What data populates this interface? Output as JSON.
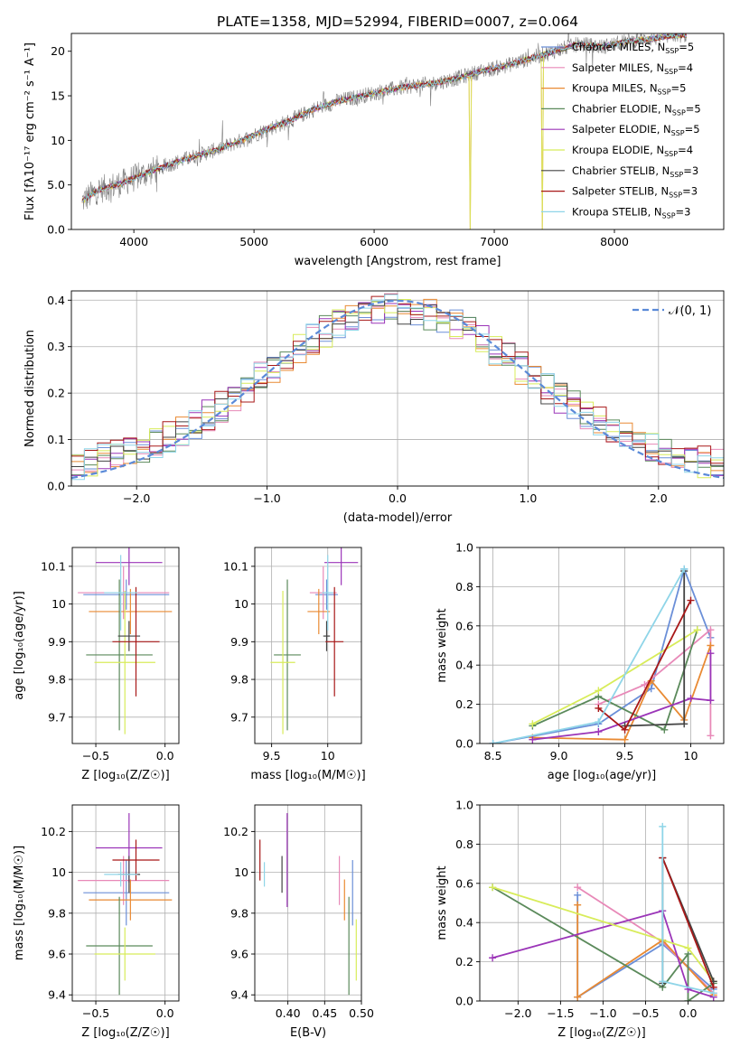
{
  "figure": {
    "title": "PLATE=1358, MJD=52994, FIBERID=0007, z=0.064"
  },
  "chart_data": [
    {
      "id": "spectrum",
      "type": "line",
      "xlabel": "wavelength [Angstrom, rest frame]",
      "ylabel": "Flux [fλ10⁻¹⁷ erg cm⁻² s⁻¹ A⁻¹]",
      "xlim": [
        3480,
        8910
      ],
      "ylim": [
        0,
        22
      ],
      "xticks": [
        4000,
        5000,
        6000,
        7000,
        8000
      ],
      "yticks": [
        0,
        5,
        10,
        15,
        20
      ],
      "grid": false,
      "legend": "upper-right",
      "observed_color": "#808080",
      "observed_trend": [
        [
          3570,
          3.2
        ],
        [
          3700,
          4.4
        ],
        [
          3900,
          5.2
        ],
        [
          4100,
          6.3
        ],
        [
          4300,
          7.3
        ],
        [
          4500,
          8.2
        ],
        [
          4700,
          9.0
        ],
        [
          4900,
          10.0
        ],
        [
          5100,
          11.2
        ],
        [
          5300,
          12.2
        ],
        [
          5500,
          13.5
        ],
        [
          5700,
          14.4
        ],
        [
          5900,
          15.0
        ],
        [
          6100,
          15.6
        ],
        [
          6300,
          16.1
        ],
        [
          6500,
          16.4
        ],
        [
          6700,
          17.0
        ],
        [
          6900,
          17.8
        ],
        [
          7100,
          18.4
        ],
        [
          7300,
          19.2
        ],
        [
          7500,
          20.0
        ],
        [
          7700,
          20.8
        ],
        [
          7900,
          20.5
        ],
        [
          8100,
          21.1
        ],
        [
          8300,
          21.4
        ],
        [
          8500,
          21.8
        ]
      ],
      "absorption_dips": [
        [
          6800,
          0.0
        ],
        [
          7400,
          0.0
        ]
      ],
      "series": [
        {
          "name": "Chabrier MILES, N",
          "n": "=5",
          "color": "#6b8fd8"
        },
        {
          "name": "Salpeter MILES, N",
          "n": "=4",
          "color": "#e889b8"
        },
        {
          "name": "Kroupa MILES, N",
          "n": "=5",
          "color": "#e98a33"
        },
        {
          "name": "Chabrier ELODIE, N",
          "n": "=5",
          "color": "#5b8a5b"
        },
        {
          "name": "Salpeter ELODIE, N",
          "n": "=5",
          "color": "#9b35b8"
        },
        {
          "name": "Kroupa ELODIE, N",
          "n": "=4",
          "color": "#d8ec5a"
        },
        {
          "name": "Chabrier STELIB, N",
          "n": "=3",
          "color": "#444444"
        },
        {
          "name": "Salpeter STELIB, N",
          "n": "=3",
          "color": "#a81818"
        },
        {
          "name": "Kroupa STELIB, N",
          "n": "=3",
          "color": "#8fd5e8"
        }
      ],
      "legend_subscript": "SSP"
    },
    {
      "id": "residuals",
      "type": "line",
      "xlabel": "(data-model)/error",
      "ylabel": "Normed distribution",
      "xlim": [
        -2.5,
        2.5
      ],
      "ylim": [
        0,
        0.42
      ],
      "xticks": [
        -2,
        -1,
        0,
        1,
        2
      ],
      "yticks": [
        0.0,
        0.1,
        0.2,
        0.3,
        0.4
      ],
      "grid": true,
      "legend": "upper-right",
      "gaussian": {
        "name": "𝒩(0, 1)",
        "mean": 0,
        "sigma": 1,
        "color": "#5b8ad8"
      },
      "bin_width": 0.1,
      "hist_colors": [
        "#6b8fd8",
        "#e889b8",
        "#e98a33",
        "#5b8a5b",
        "#9b35b8",
        "#d8ec5a",
        "#444444",
        "#a81818",
        "#8fd5e8"
      ]
    },
    {
      "id": "z-age",
      "type": "scatter",
      "xlabel": "Z [log₁₀(Z/Z☉)]",
      "ylabel": "age  [log₁₀(age/yr)]",
      "xlim": [
        -0.67,
        0.1
      ],
      "ylim": [
        9.63,
        10.15
      ],
      "xticks": [
        -0.5,
        0.0
      ],
      "yticks": [
        9.7,
        9.8,
        9.9,
        10.0,
        10.1
      ],
      "grid": true,
      "points": [
        {
          "x": -0.28,
          "y": 10.025,
          "xerr": 0.31,
          "yerr": 0.04,
          "color": "#6b8fd8"
        },
        {
          "x": -0.3,
          "y": 10.03,
          "xerr": 0.33,
          "yerr": 0.07,
          "color": "#e889b8"
        },
        {
          "x": -0.25,
          "y": 9.98,
          "xerr": 0.3,
          "yerr": 0.06,
          "color": "#e98a33"
        },
        {
          "x": -0.33,
          "y": 9.865,
          "xerr": 0.24,
          "yerr": 0.2,
          "color": "#5b8a5b"
        },
        {
          "x": -0.26,
          "y": 10.11,
          "xerr": 0.24,
          "yerr": 0.06,
          "color": "#9b35b8"
        },
        {
          "x": -0.29,
          "y": 9.845,
          "xerr": 0.22,
          "yerr": 0.19,
          "color": "#d8ec5a"
        },
        {
          "x": -0.26,
          "y": 9.915,
          "xerr": 0.08,
          "yerr": 0.04,
          "color": "#444444"
        },
        {
          "x": -0.21,
          "y": 9.9,
          "xerr": 0.17,
          "yerr": 0.145,
          "color": "#a81818"
        },
        {
          "x": -0.32,
          "y": 10.03,
          "xerr": 0.12,
          "yerr": 0.1,
          "color": "#8fd5e8"
        }
      ]
    },
    {
      "id": "mass-age",
      "type": "scatter",
      "xlabel": "mass [log₁₀(M/M☉)]",
      "ylabel": "",
      "xlim": [
        9.35,
        10.3
      ],
      "ylim": [
        9.63,
        10.15
      ],
      "xticks": [
        9.5,
        10.0
      ],
      "yticks": [
        9.7,
        9.8,
        9.9,
        10.0,
        10.1
      ],
      "grid": true,
      "points": [
        {
          "x": 9.99,
          "y": 10.025,
          "xerr": 0.1,
          "yerr": 0.04,
          "color": "#6b8fd8"
        },
        {
          "x": 9.96,
          "y": 10.03,
          "xerr": 0.12,
          "yerr": 0.07,
          "color": "#e889b8"
        },
        {
          "x": 9.92,
          "y": 9.98,
          "xerr": 0.1,
          "yerr": 0.06,
          "color": "#e98a33"
        },
        {
          "x": 9.64,
          "y": 9.865,
          "xerr": 0.12,
          "yerr": 0.2,
          "color": "#5b8a5b"
        },
        {
          "x": 10.12,
          "y": 10.11,
          "xerr": 0.15,
          "yerr": 0.06,
          "color": "#9b35b8"
        },
        {
          "x": 9.6,
          "y": 9.845,
          "xerr": 0.11,
          "yerr": 0.19,
          "color": "#d8ec5a"
        },
        {
          "x": 9.99,
          "y": 9.915,
          "xerr": 0.03,
          "yerr": 0.04,
          "color": "#444444"
        },
        {
          "x": 10.06,
          "y": 9.9,
          "xerr": 0.08,
          "yerr": 0.145,
          "color": "#a81818"
        },
        {
          "x": 10.0,
          "y": 10.03,
          "xerr": 0.05,
          "yerr": 0.1,
          "color": "#8fd5e8"
        }
      ]
    },
    {
      "id": "age-weight",
      "type": "line",
      "xlabel": "age  [log₁₀(age/yr)]",
      "ylabel": "mass weight",
      "xlim": [
        8.4,
        10.25
      ],
      "ylim": [
        0,
        1.0
      ],
      "xticks": [
        8.5,
        9.0,
        9.5,
        10.0
      ],
      "yticks": [
        0.0,
        0.2,
        0.4,
        0.6,
        0.8,
        1.0
      ],
      "grid": true,
      "series": [
        {
          "color": "#6b8fd8",
          "points": [
            [
              8.5,
              0.0
            ],
            [
              9.3,
              0.1
            ],
            [
              9.7,
              0.28
            ],
            [
              9.95,
              0.89
            ],
            [
              10.15,
              0.54
            ]
          ]
        },
        {
          "color": "#e889b8",
          "points": [
            [
              9.3,
              0.2
            ],
            [
              9.65,
              0.3
            ],
            [
              10.15,
              0.58
            ],
            [
              10.15,
              0.04
            ]
          ]
        },
        {
          "color": "#e98a33",
          "points": [
            [
              8.8,
              0.03
            ],
            [
              9.5,
              0.02
            ],
            [
              9.7,
              0.32
            ],
            [
              9.95,
              0.12
            ],
            [
              10.15,
              0.5
            ]
          ]
        },
        {
          "color": "#5b8a5b",
          "points": [
            [
              8.8,
              0.09
            ],
            [
              9.3,
              0.24
            ],
            [
              9.8,
              0.07
            ],
            [
              10.05,
              0.58
            ]
          ]
        },
        {
          "color": "#9b35b8",
          "points": [
            [
              8.8,
              0.02
            ],
            [
              9.3,
              0.06
            ],
            [
              10.0,
              0.23
            ],
            [
              10.15,
              0.22
            ],
            [
              10.15,
              0.46
            ]
          ]
        },
        {
          "color": "#d8ec5a",
          "points": [
            [
              8.8,
              0.1
            ],
            [
              9.3,
              0.27
            ],
            [
              10.05,
              0.58
            ]
          ]
        },
        {
          "color": "#444444",
          "points": [
            [
              9.5,
              0.09
            ],
            [
              9.95,
              0.1
            ],
            [
              9.95,
              0.88
            ]
          ]
        },
        {
          "color": "#a81818",
          "points": [
            [
              9.3,
              0.18
            ],
            [
              9.5,
              0.07
            ],
            [
              10.0,
              0.73
            ]
          ]
        },
        {
          "color": "#8fd5e8",
          "points": [
            [
              8.5,
              0.0
            ],
            [
              9.3,
              0.11
            ],
            [
              9.95,
              0.89
            ]
          ]
        }
      ]
    },
    {
      "id": "z-mass",
      "type": "scatter",
      "xlabel": "Z [log₁₀(Z/Z☉)]",
      "ylabel": "mass [log₁₀(M/M☉)]",
      "xlim": [
        -0.67,
        0.1
      ],
      "ylim": [
        9.37,
        10.33
      ],
      "xticks": [
        -0.5,
        0.0
      ],
      "yticks": [
        9.4,
        9.6,
        9.8,
        10.0,
        10.2
      ],
      "grid": true,
      "points": [
        {
          "x": -0.28,
          "y": 9.9,
          "xerr": 0.31,
          "yerr": 0.16,
          "color": "#6b8fd8"
        },
        {
          "x": -0.3,
          "y": 9.96,
          "xerr": 0.33,
          "yerr": 0.12,
          "color": "#e889b8"
        },
        {
          "x": -0.25,
          "y": 9.865,
          "xerr": 0.3,
          "yerr": 0.1,
          "color": "#e98a33"
        },
        {
          "x": -0.33,
          "y": 9.64,
          "xerr": 0.24,
          "yerr": 0.24,
          "color": "#5b8a5b"
        },
        {
          "x": -0.26,
          "y": 10.12,
          "xerr": 0.24,
          "yerr": 0.17,
          "color": "#9b35b8"
        },
        {
          "x": -0.29,
          "y": 9.6,
          "xerr": 0.22,
          "yerr": 0.13,
          "color": "#d8ec5a"
        },
        {
          "x": -0.26,
          "y": 9.99,
          "xerr": 0.08,
          "yerr": 0.09,
          "color": "#444444"
        },
        {
          "x": -0.21,
          "y": 10.06,
          "xerr": 0.17,
          "yerr": 0.1,
          "color": "#a81818"
        },
        {
          "x": -0.32,
          "y": 9.99,
          "xerr": 0.12,
          "yerr": 0.06,
          "color": "#8fd5e8"
        }
      ]
    },
    {
      "id": "ebv-mass",
      "type": "scatter",
      "xlabel": "E(B-V)",
      "ylabel": "",
      "xlim": [
        0.355,
        0.5
      ],
      "ylim": [
        9.37,
        10.33
      ],
      "xticks": [
        0.4,
        0.45,
        0.5
      ],
      "xticklabels": [
        "0.40",
        "0.45",
        "0.50"
      ],
      "yticks": [
        9.4,
        9.6,
        9.8,
        10.0,
        10.2
      ],
      "grid": true,
      "points": [
        {
          "x": 0.488,
          "y": 9.9,
          "yerr": 0.16,
          "color": "#6b8fd8"
        },
        {
          "x": 0.47,
          "y": 9.96,
          "yerr": 0.12,
          "color": "#e889b8"
        },
        {
          "x": 0.477,
          "y": 9.865,
          "yerr": 0.1,
          "color": "#e98a33"
        },
        {
          "x": 0.483,
          "y": 9.64,
          "yerr": 0.24,
          "color": "#5b8a5b"
        },
        {
          "x": 0.399,
          "y": 10.06,
          "yerr": 0.23,
          "color": "#9b35b8"
        },
        {
          "x": 0.493,
          "y": 9.62,
          "yerr": 0.15,
          "color": "#d8ec5a"
        },
        {
          "x": 0.392,
          "y": 9.99,
          "yerr": 0.09,
          "color": "#444444"
        },
        {
          "x": 0.362,
          "y": 10.06,
          "yerr": 0.1,
          "color": "#a81818"
        },
        {
          "x": 0.368,
          "y": 9.99,
          "yerr": 0.06,
          "color": "#8fd5e8"
        }
      ]
    },
    {
      "id": "z-weight",
      "type": "line",
      "xlabel": "Z [log₁₀(Z/Z☉)]",
      "ylabel": "mass weight",
      "xlim": [
        -2.45,
        0.42
      ],
      "ylim": [
        0,
        1.0
      ],
      "xticks": [
        -2.0,
        -1.5,
        -1.0,
        -0.5,
        0.0
      ],
      "yticks": [
        0.0,
        0.2,
        0.4,
        0.6,
        0.8,
        1.0
      ],
      "grid": true,
      "series": [
        {
          "color": "#6b8fd8",
          "points": [
            [
              -1.3,
              0.54
            ],
            [
              -1.3,
              0.02
            ],
            [
              -0.3,
              0.29
            ],
            [
              0.3,
              0.06
            ]
          ]
        },
        {
          "color": "#e889b8",
          "points": [
            [
              -1.3,
              0.58
            ],
            [
              -0.3,
              0.3
            ],
            [
              0.3,
              0.04
            ]
          ]
        },
        {
          "color": "#e98a33",
          "points": [
            [
              -1.3,
              0.49
            ],
            [
              -1.3,
              0.02
            ],
            [
              -0.3,
              0.31
            ],
            [
              0.3,
              0.03
            ]
          ]
        },
        {
          "color": "#5b8a5b",
          "points": [
            [
              -2.3,
              0.58
            ],
            [
              -0.3,
              0.07
            ],
            [
              0.0,
              0.24
            ],
            [
              0.0,
              0.0
            ],
            [
              0.3,
              0.09
            ]
          ]
        },
        {
          "color": "#9b35b8",
          "points": [
            [
              -2.3,
              0.22
            ],
            [
              -0.3,
              0.46
            ],
            [
              0.0,
              0.06
            ],
            [
              0.3,
              0.02
            ]
          ]
        },
        {
          "color": "#d8ec5a",
          "points": [
            [
              -2.3,
              0.58
            ],
            [
              0.0,
              0.27
            ],
            [
              0.3,
              0.1
            ]
          ]
        },
        {
          "color": "#444444",
          "points": [
            [
              -0.3,
              0.09
            ],
            [
              -0.3,
              0.73
            ],
            [
              0.3,
              0.1
            ]
          ]
        },
        {
          "color": "#a81818",
          "points": [
            [
              -0.3,
              0.73
            ],
            [
              0.3,
              0.07
            ]
          ]
        },
        {
          "color": "#8fd5e8",
          "points": [
            [
              -0.3,
              0.89
            ],
            [
              -0.3,
              0.1
            ],
            [
              0.3,
              0.04
            ]
          ]
        }
      ]
    }
  ]
}
